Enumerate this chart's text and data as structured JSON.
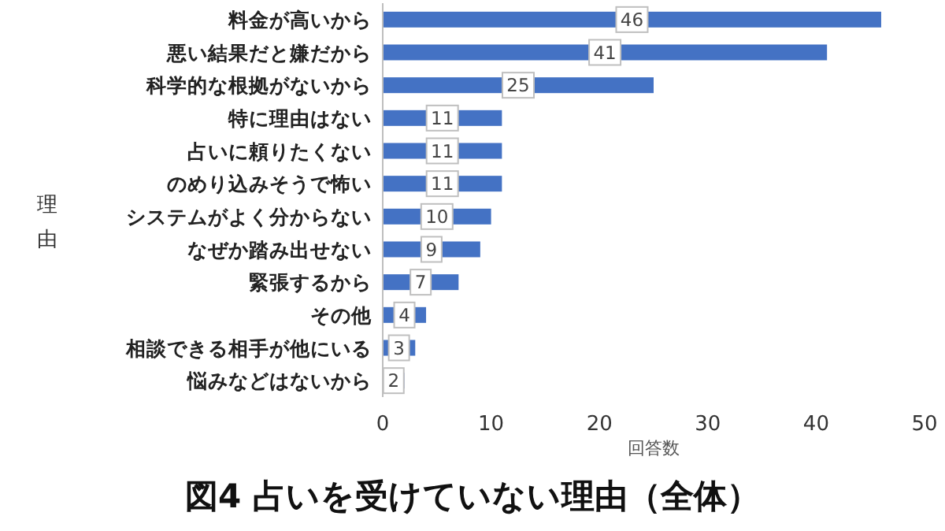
{
  "chart_data": {
    "type": "bar",
    "orientation": "horizontal",
    "title": "図4 占いを受けていない理由（全体）",
    "xlabel": "回答数",
    "ylabel": "理由",
    "categories": [
      "料金が高いから",
      "悪い結果だと嫌だから",
      "科学的な根拠がないから",
      "特に理由はない",
      "占いに頼りたくない",
      "のめり込みそうで怖い",
      "システムがよく分からない",
      "なぜか踏み出せない",
      "緊張するから",
      "その他",
      "相談できる相手が他にいる",
      "悩みなどはないから"
    ],
    "values": [
      46,
      41,
      25,
      11,
      11,
      11,
      10,
      9,
      7,
      4,
      3,
      2
    ],
    "color": "#4472c4",
    "xlim": [
      0,
      50
    ],
    "xticks": [
      0,
      10,
      20,
      30,
      40,
      50
    ],
    "data_labels": true
  }
}
